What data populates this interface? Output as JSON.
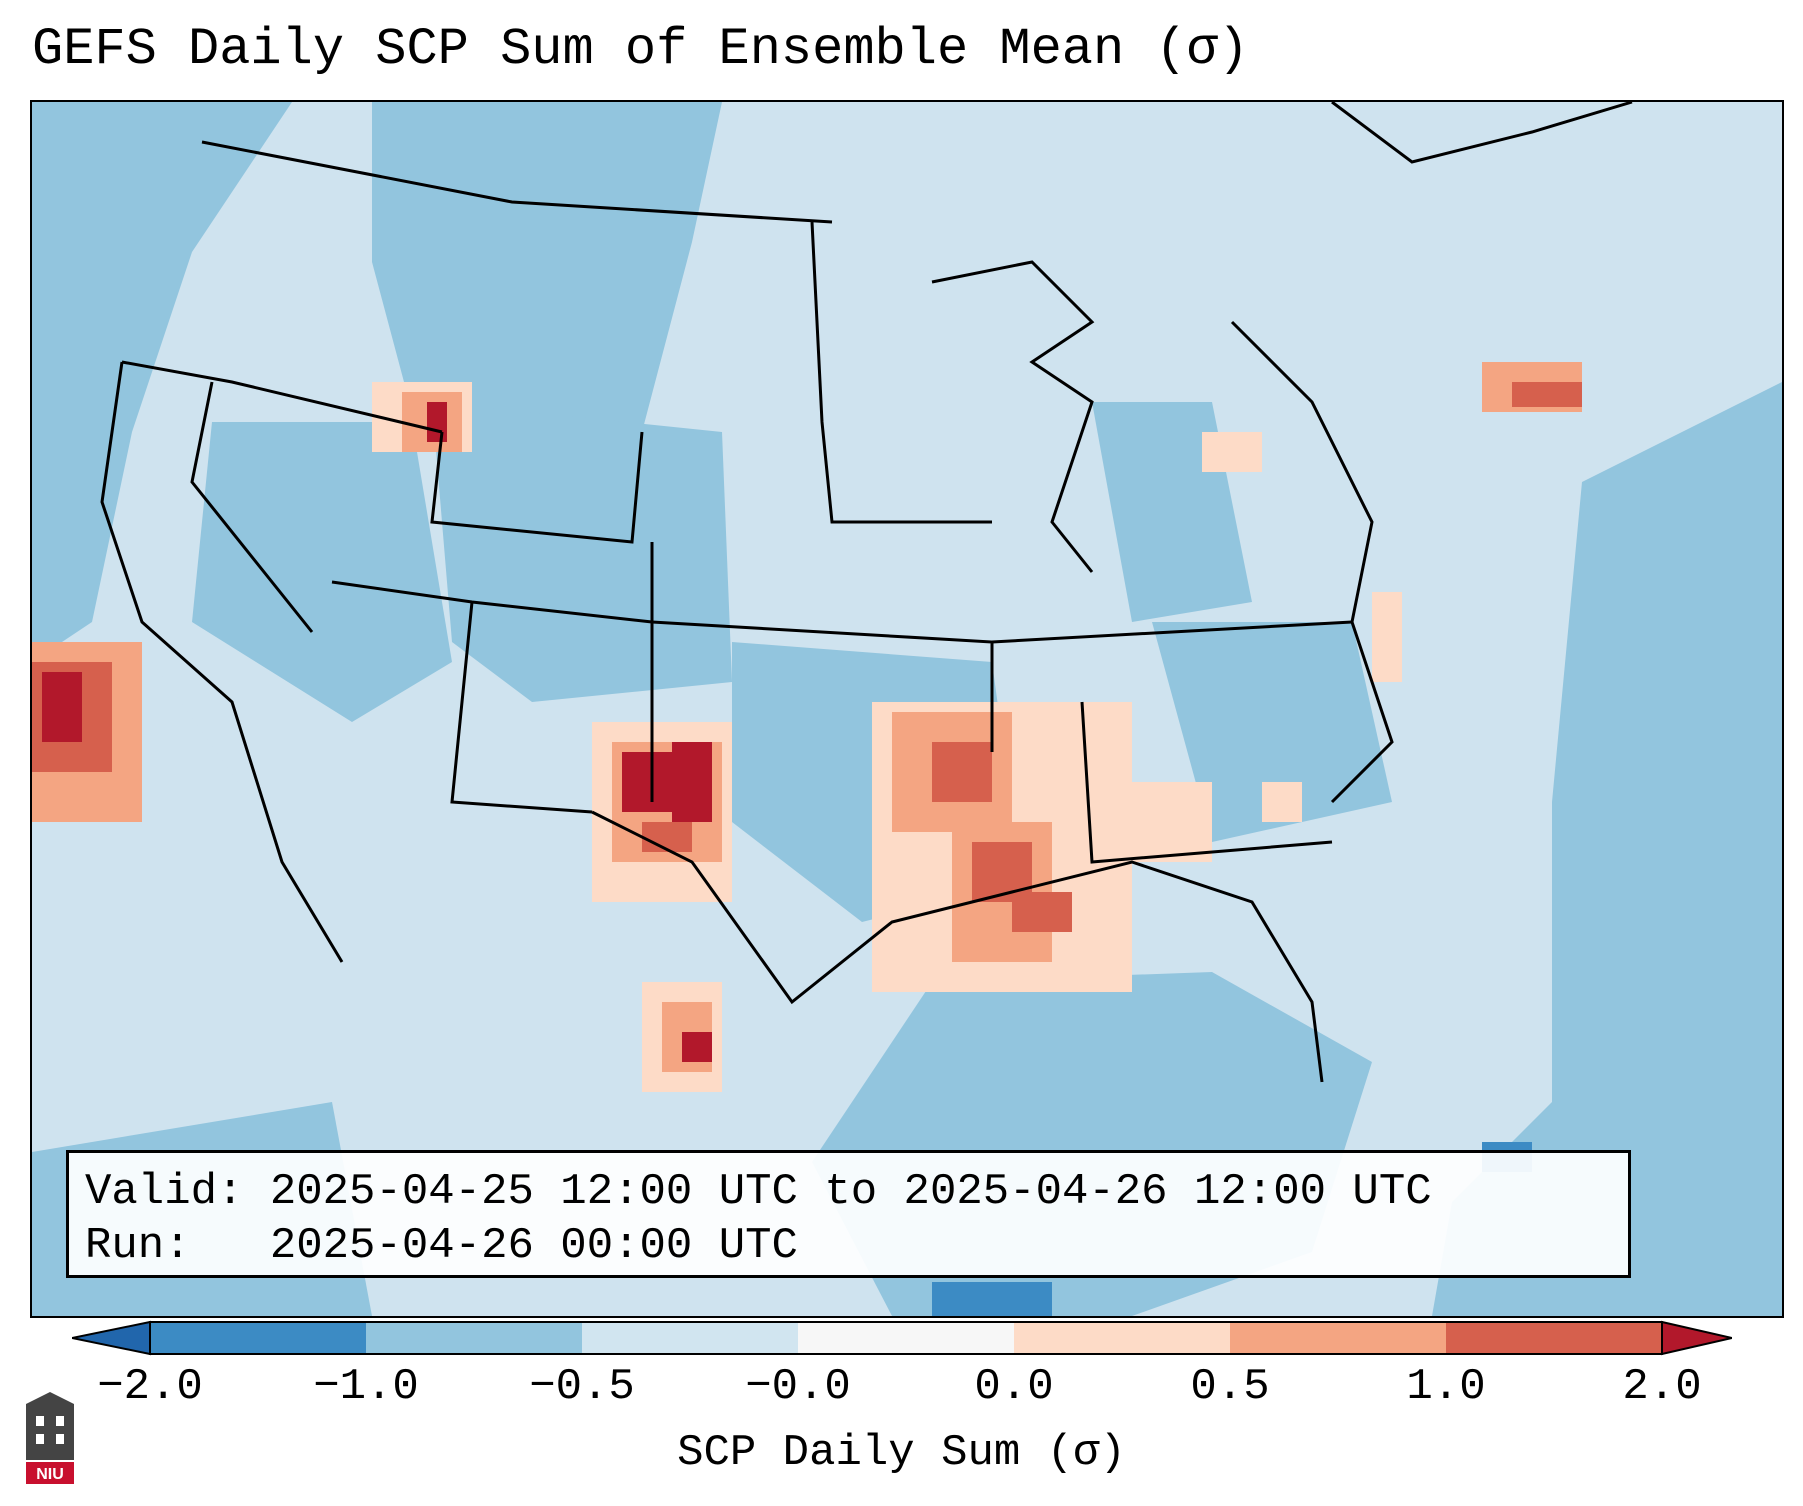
{
  "title": "GEFS Daily SCP Sum of Ensemble Mean (σ)",
  "info": {
    "valid_label": "Valid:",
    "valid_value": "2025-04-25 12:00 UTC to 2025-04-26 12:00 UTC",
    "run_label": "Run:",
    "run_value": "2025-04-26 00:00 UTC"
  },
  "colorbar": {
    "label": "SCP Daily Sum (σ)",
    "ticks": [
      "−2.0",
      "−1.0",
      "−0.5",
      "−0.0",
      "0.0",
      "0.5",
      "1.0",
      "2.0"
    ],
    "bin_colors": [
      "#3c8bc4",
      "#92c5de",
      "#d1e5f0",
      "#f7f7f7",
      "#fddbc7",
      "#f4a582",
      "#d6604d"
    ],
    "extend_low_color": "#2166ac",
    "extend_high_color": "#b2182b"
  },
  "map_colors": {
    "background": "#cfe3ef",
    "ocean": "#92c5de",
    "land_light": "#d1e5f0",
    "positive_weak": "#fddbc7",
    "positive_mid": "#f4a582",
    "positive_strong": "#d6604d",
    "positive_max": "#b2182b",
    "negative_strong": "#3c8bc4"
  },
  "logo_text": "NIU"
}
